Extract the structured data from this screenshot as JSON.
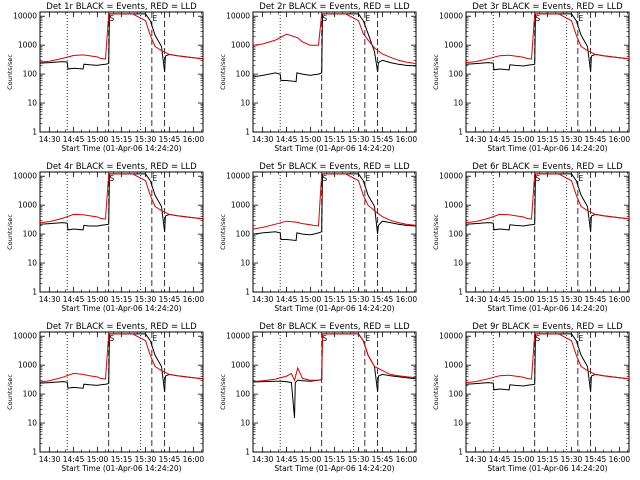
{
  "chart_data": {
    "type": "line",
    "layout": "3x3 grid",
    "series_legend": {
      "black": "Events",
      "red": "LLD"
    },
    "ylabel": "Counts/sec",
    "xlabel": "Start Time (01-Apr-06 14:24:20)",
    "x_ticks": [
      "14:30",
      "14:45",
      "15:00",
      "15:15",
      "15:30",
      "15:45",
      "16:00"
    ],
    "x_tick_minutes": [
      0,
      15,
      30,
      45,
      60,
      75,
      90
    ],
    "xlim_minutes": [
      -6,
      96
    ],
    "y_ticks": [
      "1",
      "10",
      "100",
      "1000",
      "10000"
    ],
    "y_tick_values": [
      1,
      10,
      100,
      1000,
      10000
    ],
    "ylim": [
      1,
      14000
    ],
    "yscale": "log",
    "dotted_lines_minutes": [
      11,
      57
    ],
    "dashed_lines_minutes": [
      37,
      64,
      72
    ],
    "markers": [
      {
        "symbol": "S",
        "minute": 37
      },
      {
        "symbol": "E",
        "minute": 64
      }
    ],
    "panels": [
      {
        "title": "Det 1r BLACK = Events, RED = LLD",
        "red": {
          "x": [
            -6,
            0,
            8,
            15,
            21,
            25,
            30,
            32,
            35,
            37,
            37.5,
            40,
            45,
            52,
            60,
            63,
            66,
            70,
            75,
            80,
            85,
            90,
            96
          ],
          "y": [
            260,
            280,
            350,
            440,
            460,
            430,
            390,
            350,
            330,
            12000,
            12000,
            12000,
            12000,
            12000,
            7000,
            2200,
            900,
            650,
            480,
            430,
            400,
            370,
            340
          ]
        },
        "black": {
          "x": [
            -6,
            0,
            8,
            11,
            11.5,
            15,
            21,
            21.5,
            25,
            30,
            32,
            35,
            37,
            37.5,
            40,
            45,
            52,
            60,
            63,
            66,
            70,
            72,
            72.5,
            75,
            80,
            85,
            90,
            96
          ],
          "y": [
            240,
            250,
            270,
            260,
            150,
            160,
            150,
            220,
            210,
            200,
            210,
            220,
            230,
            12000,
            12000,
            12000,
            12000,
            12000,
            7000,
            2200,
            900,
            120,
            420,
            480,
            430,
            400,
            370,
            340
          ]
        }
      },
      {
        "title": "Det 2r BLACK = Events, RED = LLD",
        "red": {
          "x": [
            -6,
            0,
            8,
            15,
            22,
            25,
            30,
            32,
            35,
            37,
            37.5,
            40,
            45,
            52,
            60,
            63,
            66,
            70,
            75,
            80,
            85,
            90,
            96
          ],
          "y": [
            1000,
            1100,
            1500,
            2400,
            1800,
            1300,
            1000,
            1000,
            1000,
            12000,
            12000,
            12000,
            12000,
            12000,
            7000,
            2500,
            1500,
            800,
            500,
            380,
            300,
            260,
            230
          ]
        },
        "black": {
          "x": [
            -6,
            0,
            8,
            11,
            11.5,
            15,
            21,
            21.5,
            25,
            30,
            32,
            35,
            37,
            37.5,
            40,
            45,
            52,
            60,
            63,
            66,
            70,
            72,
            72.5,
            75,
            80,
            85,
            90,
            96
          ],
          "y": [
            80,
            90,
            110,
            100,
            60,
            60,
            55,
            110,
            100,
            90,
            95,
            100,
            110,
            12000,
            12000,
            12000,
            12000,
            12000,
            7000,
            2500,
            600,
            120,
            250,
            300,
            250,
            220,
            200,
            190
          ]
        }
      },
      {
        "title": "Det 3r BLACK = Events, RED = LLD",
        "red": {
          "x": [
            -6,
            0,
            8,
            15,
            21,
            25,
            30,
            32,
            35,
            37,
            37.5,
            40,
            45,
            52,
            60,
            63,
            66,
            70,
            75,
            80,
            85,
            90,
            96
          ],
          "y": [
            250,
            270,
            340,
            430,
            450,
            420,
            380,
            350,
            330,
            12000,
            12000,
            12000,
            12000,
            12000,
            7000,
            2200,
            900,
            650,
            480,
            430,
            400,
            370,
            340
          ]
        },
        "black": {
          "x": [
            -6,
            0,
            8,
            11,
            11.5,
            15,
            21,
            21.5,
            25,
            30,
            32,
            35,
            37,
            37.5,
            40,
            45,
            52,
            60,
            63,
            66,
            70,
            72,
            72.5,
            75,
            80,
            85,
            90,
            96
          ],
          "y": [
            220,
            230,
            250,
            240,
            140,
            150,
            140,
            210,
            200,
            190,
            200,
            210,
            220,
            12000,
            12000,
            12000,
            12000,
            12000,
            7000,
            2200,
            900,
            120,
            420,
            480,
            430,
            400,
            370,
            340
          ]
        }
      },
      {
        "title": "Det 4r BLACK = Events, RED = LLD",
        "red": {
          "x": [
            -6,
            0,
            8,
            15,
            21,
            25,
            30,
            32,
            35,
            37,
            37.5,
            40,
            45,
            52,
            60,
            63,
            66,
            70,
            75,
            80,
            85,
            90,
            96
          ],
          "y": [
            250,
            270,
            350,
            480,
            470,
            430,
            390,
            350,
            330,
            12000,
            12000,
            12000,
            12000,
            12000,
            7000,
            2200,
            900,
            650,
            480,
            430,
            400,
            370,
            340
          ]
        },
        "black": {
          "x": [
            -6,
            0,
            8,
            11,
            11.5,
            15,
            21,
            21.5,
            25,
            30,
            32,
            35,
            37,
            37.5,
            40,
            45,
            52,
            60,
            63,
            66,
            70,
            72,
            72.5,
            75,
            80,
            85,
            90,
            96
          ],
          "y": [
            220,
            230,
            250,
            240,
            140,
            150,
            140,
            200,
            190,
            190,
            200,
            210,
            220,
            12000,
            12000,
            12000,
            12000,
            12000,
            7000,
            2200,
            900,
            120,
            420,
            480,
            430,
            400,
            370,
            340
          ]
        }
      },
      {
        "title": "Det 5r BLACK = Events, RED = LLD",
        "red": {
          "x": [
            -6,
            0,
            8,
            15,
            21,
            25,
            30,
            32,
            35,
            37,
            37.5,
            40,
            45,
            52,
            60,
            63,
            66,
            70,
            75,
            80,
            85,
            90,
            96
          ],
          "y": [
            150,
            170,
            220,
            280,
            260,
            230,
            210,
            200,
            190,
            12000,
            12000,
            12000,
            12000,
            12000,
            7000,
            2200,
            1000,
            650,
            400,
            300,
            250,
            220,
            200
          ]
        },
        "black": {
          "x": [
            -6,
            0,
            8,
            11,
            11.5,
            15,
            21,
            21.5,
            25,
            30,
            32,
            35,
            37,
            37.5,
            40,
            45,
            52,
            60,
            63,
            66,
            70,
            72,
            72.5,
            75,
            80,
            85,
            90,
            96
          ],
          "y": [
            100,
            110,
            120,
            110,
            65,
            65,
            60,
            110,
            100,
            95,
            100,
            110,
            120,
            12000,
            12000,
            12000,
            12000,
            12000,
            7000,
            2200,
            900,
            100,
            200,
            280,
            250,
            220,
            200,
            190
          ]
        }
      },
      {
        "title": "Det 6r BLACK = Events, RED = LLD",
        "red": {
          "x": [
            -6,
            0,
            8,
            15,
            21,
            25,
            30,
            32,
            35,
            37,
            37.5,
            40,
            45,
            52,
            60,
            63,
            66,
            70,
            75,
            80,
            85,
            90,
            96
          ],
          "y": [
            250,
            270,
            350,
            480,
            470,
            430,
            390,
            350,
            330,
            12000,
            12000,
            12000,
            12000,
            12000,
            7000,
            2200,
            900,
            650,
            480,
            430,
            400,
            370,
            340
          ]
        },
        "black": {
          "x": [
            -6,
            0,
            8,
            11,
            11.5,
            15,
            21,
            21.5,
            25,
            30,
            32,
            35,
            37,
            37.5,
            40,
            45,
            52,
            60,
            63,
            66,
            70,
            72,
            72.5,
            75,
            80,
            85,
            90,
            96
          ],
          "y": [
            220,
            230,
            250,
            240,
            140,
            150,
            140,
            210,
            200,
            190,
            200,
            210,
            220,
            12000,
            12000,
            12000,
            12000,
            12000,
            7000,
            2200,
            900,
            120,
            420,
            480,
            430,
            400,
            370,
            340
          ]
        }
      },
      {
        "title": "Det 7r BLACK = Events, RED = LLD",
        "red": {
          "x": [
            -6,
            0,
            8,
            15,
            21,
            25,
            30,
            32,
            35,
            37,
            37.5,
            40,
            45,
            52,
            60,
            63,
            66,
            70,
            75,
            80,
            85,
            90,
            96
          ],
          "y": [
            260,
            290,
            380,
            520,
            480,
            430,
            390,
            350,
            330,
            12000,
            12000,
            12000,
            12000,
            12000,
            7000,
            2200,
            900,
            650,
            480,
            430,
            400,
            370,
            340
          ]
        },
        "black": {
          "x": [
            -6,
            0,
            8,
            11,
            11.5,
            15,
            21,
            21.5,
            25,
            30,
            32,
            35,
            37,
            37.5,
            40,
            45,
            52,
            60,
            63,
            66,
            70,
            72,
            72.5,
            75,
            80,
            85,
            90,
            96
          ],
          "y": [
            240,
            250,
            270,
            260,
            160,
            170,
            160,
            220,
            210,
            200,
            210,
            220,
            230,
            12000,
            12000,
            12000,
            12000,
            12000,
            7000,
            2200,
            900,
            120,
            420,
            480,
            430,
            400,
            370,
            340
          ]
        }
      },
      {
        "title": "Det 8r BLACK = Events, RED = LLD",
        "red": {
          "x": [
            -6,
            0,
            8,
            15,
            18,
            20,
            22,
            25,
            28,
            30,
            32,
            35,
            37,
            37.5,
            40,
            45,
            52,
            60,
            63,
            66,
            70,
            75,
            80,
            85,
            90,
            96
          ],
          "y": [
            270,
            290,
            330,
            420,
            520,
            300,
            800,
            350,
            320,
            300,
            300,
            300,
            330,
            12000,
            12000,
            12000,
            12000,
            12000,
            7000,
            2200,
            900,
            650,
            480,
            430,
            400,
            370
          ]
        },
        "black": {
          "x": [
            -6,
            0,
            8,
            11,
            15,
            18,
            20,
            20.5,
            22,
            22.5,
            25,
            30,
            32,
            35,
            37,
            37.5,
            40,
            45,
            52,
            60,
            63,
            66,
            70,
            72,
            72.5,
            75,
            80,
            85,
            90,
            96
          ],
          "y": [
            260,
            270,
            280,
            280,
            270,
            250,
            15,
            250,
            300,
            300,
            290,
            280,
            290,
            300,
            320,
            12000,
            12000,
            12000,
            12000,
            12000,
            7000,
            2200,
            900,
            120,
            420,
            480,
            430,
            400,
            370,
            340
          ]
        }
      },
      {
        "title": "Det 9r BLACK = Events, RED = LLD",
        "red": {
          "x": [
            -6,
            0,
            8,
            15,
            21,
            25,
            30,
            32,
            35,
            37,
            37.5,
            40,
            45,
            52,
            60,
            63,
            66,
            70,
            75,
            80,
            85,
            90,
            96
          ],
          "y": [
            250,
            270,
            340,
            430,
            450,
            420,
            380,
            350,
            330,
            12000,
            12000,
            12000,
            12000,
            12000,
            7000,
            2200,
            900,
            650,
            480,
            430,
            400,
            370,
            340
          ]
        },
        "black": {
          "x": [
            -6,
            0,
            8,
            11,
            11.5,
            15,
            21,
            21.5,
            25,
            30,
            32,
            35,
            37,
            37.5,
            40,
            45,
            52,
            60,
            63,
            66,
            70,
            72,
            72.5,
            75,
            80,
            85,
            90,
            96
          ],
          "y": [
            220,
            230,
            250,
            240,
            140,
            150,
            140,
            210,
            200,
            190,
            200,
            210,
            220,
            12000,
            12000,
            12000,
            12000,
            12000,
            7000,
            2200,
            900,
            120,
            420,
            480,
            430,
            400,
            370,
            340
          ]
        }
      }
    ]
  },
  "colors": {
    "events": "#000000",
    "lld": "#e00000",
    "axis": "#000000",
    "background": "#ffffff"
  }
}
